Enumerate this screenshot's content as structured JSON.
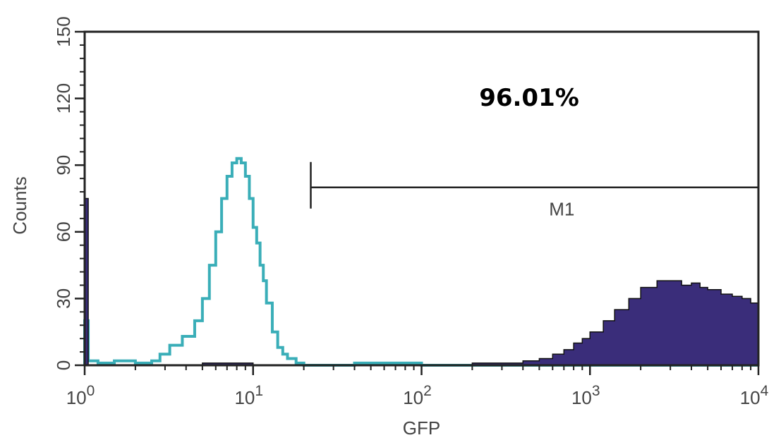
{
  "chart_data": {
    "type": "area",
    "xlabel": "GFP",
    "ylabel": "Counts",
    "xscale": "log",
    "xlim": [
      1,
      10000
    ],
    "ylim": [
      0,
      150
    ],
    "x_ticks": [
      {
        "base": "10",
        "exp": "0",
        "value": 1
      },
      {
        "base": "10",
        "exp": "1",
        "value": 10
      },
      {
        "base": "10",
        "exp": "2",
        "value": 100
      },
      {
        "base": "10",
        "exp": "3",
        "value": 1000
      },
      {
        "base": "10",
        "exp": "4",
        "value": 10000
      }
    ],
    "y_ticks": [
      "0",
      "30",
      "60",
      "90",
      "120",
      "150"
    ],
    "grid": false,
    "annotation": "96.01%",
    "gate": {
      "label": "M1",
      "x_start": 22,
      "x_end": 10000,
      "y": 80
    },
    "series": [
      {
        "style": "outline",
        "color": "#3aaeb8",
        "x": [
          1.0,
          1.05,
          1.2,
          1.5,
          2.0,
          2.5,
          2.8,
          3.2,
          3.8,
          4.5,
          5.0,
          5.5,
          6.0,
          6.5,
          7.0,
          7.5,
          8.0,
          8.5,
          9.0,
          9.5,
          10,
          10.5,
          11,
          11.5,
          12,
          13,
          14,
          15,
          16,
          18,
          20,
          25,
          40,
          100,
          1000,
          10000
        ],
        "y": [
          20,
          2,
          1,
          2,
          1,
          2,
          5,
          9,
          13,
          20,
          30,
          45,
          60,
          75,
          85,
          91,
          93,
          91,
          85,
          75,
          62,
          55,
          45,
          38,
          28,
          15,
          8,
          5,
          3,
          1,
          0,
          0,
          1,
          0,
          0,
          0
        ]
      },
      {
        "style": "filled",
        "color": "#3a2d7a",
        "x": [
          1.0,
          1.05,
          1.3,
          2,
          5,
          10,
          30,
          100,
          200,
          300,
          400,
          500,
          600,
          700,
          800,
          900,
          1000,
          1200,
          1400,
          1700,
          2000,
          2500,
          3000,
          3500,
          4000,
          4500,
          5000,
          6000,
          7000,
          8000,
          9000,
          10000
        ],
        "y": [
          75,
          0,
          0,
          0,
          1,
          0,
          0,
          0,
          1,
          1,
          2,
          3,
          5,
          7,
          10,
          12,
          15,
          20,
          25,
          30,
          35,
          38,
          38,
          36,
          37,
          35,
          34,
          32,
          31,
          30,
          28,
          26
        ]
      }
    ]
  }
}
